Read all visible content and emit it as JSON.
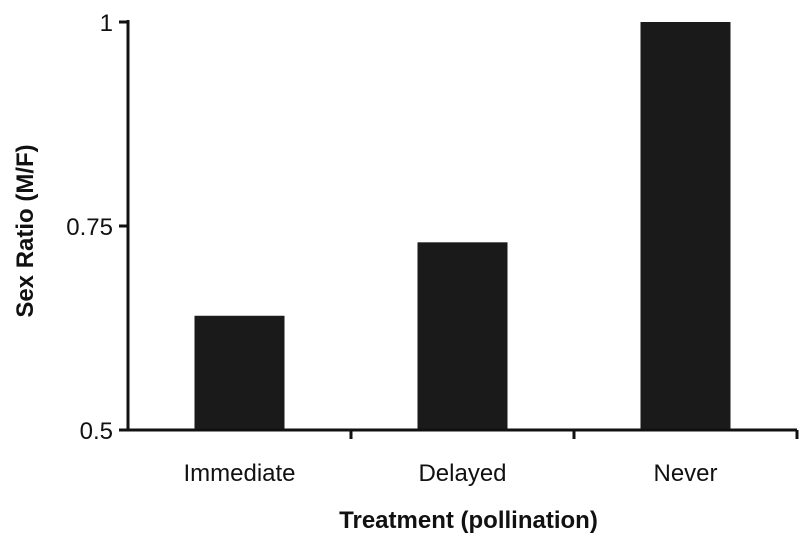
{
  "chart_data": {
    "type": "bar",
    "title": "",
    "xlabel": "Treatment (pollination)",
    "ylabel": "Sex Ratio (M/F)",
    "categories": [
      "Immediate",
      "Delayed",
      "Never"
    ],
    "values": [
      0.64,
      0.73,
      1.0
    ],
    "ylim": [
      0.5,
      1.0
    ],
    "yticks": [
      0.5,
      0.75,
      1
    ],
    "ytick_labels": [
      "0.5",
      "0.75",
      "1"
    ],
    "grid": false,
    "legend": "none",
    "bar_color": "#1a1a1a",
    "axis_color": "#111111"
  }
}
